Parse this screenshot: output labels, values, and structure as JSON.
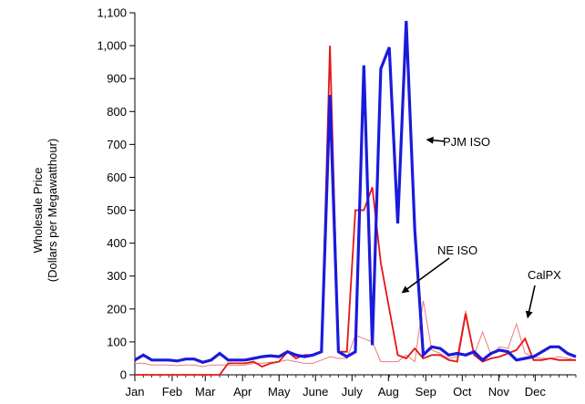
{
  "chart_data": {
    "type": "line",
    "title": "",
    "ylabel": [
      "Wholesale Price",
      "(Dollars per Megawatthour)"
    ],
    "xlabel": "",
    "ylim": [
      0,
      1100
    ],
    "xlim": [
      0,
      52
    ],
    "yticks": [
      0,
      100,
      200,
      300,
      400,
      500,
      600,
      700,
      800,
      900,
      1000,
      1100
    ],
    "ytick_labels": [
      "0",
      "100",
      "200",
      "300",
      "400",
      "500",
      "600",
      "700",
      "800",
      "900",
      "1,000",
      "1,100"
    ],
    "months": [
      {
        "label": "Jan",
        "x": 0
      },
      {
        "label": "Feb",
        "x": 4.4
      },
      {
        "label": "Mar",
        "x": 8.3
      },
      {
        "label": "Apr",
        "x": 12.7
      },
      {
        "label": "May",
        "x": 17.0
      },
      {
        "label": "June",
        "x": 21.3
      },
      {
        "label": "July",
        "x": 25.6
      },
      {
        "label": "Aug",
        "x": 29.9
      },
      {
        "label": "Sep",
        "x": 34.3
      },
      {
        "label": "Oct",
        "x": 38.6
      },
      {
        "label": "Nov",
        "x": 42.9
      },
      {
        "label": "Dec",
        "x": 47.2
      }
    ],
    "grid": false,
    "legend": "annotations",
    "series": [
      {
        "name": "PJM ISO",
        "color": "#1a1adb",
        "width": 3.2,
        "opacity": 1,
        "x": [
          0,
          1,
          2,
          3,
          4,
          5,
          6,
          7,
          8,
          9,
          10,
          11,
          12,
          13,
          14,
          15,
          16,
          17,
          18,
          19,
          20,
          21,
          22,
          23,
          24,
          25,
          26,
          27,
          28,
          29,
          30,
          31,
          32,
          33,
          34,
          35,
          36,
          37,
          38,
          39,
          40,
          41,
          42,
          43,
          44,
          45,
          46,
          47,
          48,
          49,
          50,
          51,
          52
        ],
        "y": [
          45,
          60,
          45,
          45,
          45,
          42,
          48,
          48,
          38,
          45,
          65,
          45,
          45,
          45,
          50,
          55,
          58,
          55,
          70,
          60,
          55,
          60,
          70,
          850,
          70,
          55,
          70,
          940,
          90,
          930,
          995,
          460,
          1075,
          440,
          60,
          85,
          80,
          60,
          65,
          60,
          70,
          45,
          65,
          75,
          70,
          45,
          50,
          55,
          70,
          85,
          85,
          65,
          55
        ]
      },
      {
        "name": "NE ISO",
        "color": "#e61414",
        "width": 1.8,
        "opacity": 1,
        "x": [
          0,
          1,
          2,
          3,
          4,
          5,
          6,
          7,
          8,
          9,
          10,
          11,
          12,
          13,
          14,
          15,
          16,
          17,
          18,
          19,
          20,
          21,
          22,
          23,
          24,
          25,
          26,
          27,
          28,
          29,
          30,
          31,
          32,
          33,
          34,
          35,
          36,
          37,
          38,
          39,
          40,
          41,
          42,
          43,
          44,
          45,
          46,
          47,
          48,
          49,
          50,
          51,
          52
        ],
        "y": [
          0,
          0,
          0,
          0,
          0,
          0,
          0,
          0,
          0,
          0,
          0,
          35,
          35,
          35,
          40,
          25,
          35,
          40,
          70,
          50,
          60,
          60,
          70,
          1000,
          70,
          70,
          500,
          500,
          570,
          340,
          200,
          60,
          50,
          80,
          50,
          60,
          60,
          45,
          40,
          185,
          60,
          40,
          50,
          55,
          65,
          75,
          110,
          45,
          45,
          50,
          45,
          45,
          45
        ]
      },
      {
        "name": "CalPX",
        "color": "#f07a7a",
        "width": 1.0,
        "opacity": 1,
        "x": [
          0,
          1,
          2,
          3,
          4,
          5,
          6,
          7,
          8,
          9,
          10,
          11,
          12,
          13,
          14,
          15,
          16,
          17,
          18,
          19,
          20,
          21,
          22,
          23,
          24,
          25,
          26,
          27,
          28,
          29,
          30,
          31,
          32,
          33,
          34,
          35,
          36,
          37,
          38,
          39,
          40,
          41,
          42,
          43,
          44,
          45,
          46,
          47,
          48,
          49,
          50,
          51,
          52
        ],
        "y": [
          35,
          35,
          30,
          30,
          30,
          28,
          30,
          30,
          25,
          30,
          30,
          30,
          28,
          30,
          35,
          35,
          38,
          40,
          45,
          40,
          35,
          35,
          45,
          55,
          50,
          50,
          120,
          110,
          100,
          40,
          40,
          40,
          60,
          40,
          225,
          75,
          65,
          50,
          55,
          195,
          60,
          130,
          60,
          85,
          80,
          155,
          65,
          55,
          50,
          50,
          55,
          50,
          45
        ]
      }
    ],
    "annotations": [
      {
        "text": "PJM ISO",
        "series": "PJM ISO",
        "at_x": 33.8,
        "at_y": 720
      },
      {
        "text": "NE ISO",
        "series": "NE ISO",
        "at_x": 31.1,
        "at_y": 250
      },
      {
        "text": "CalPX",
        "series": "CalPX",
        "at_x": 46.0,
        "at_y": 160
      }
    ]
  }
}
